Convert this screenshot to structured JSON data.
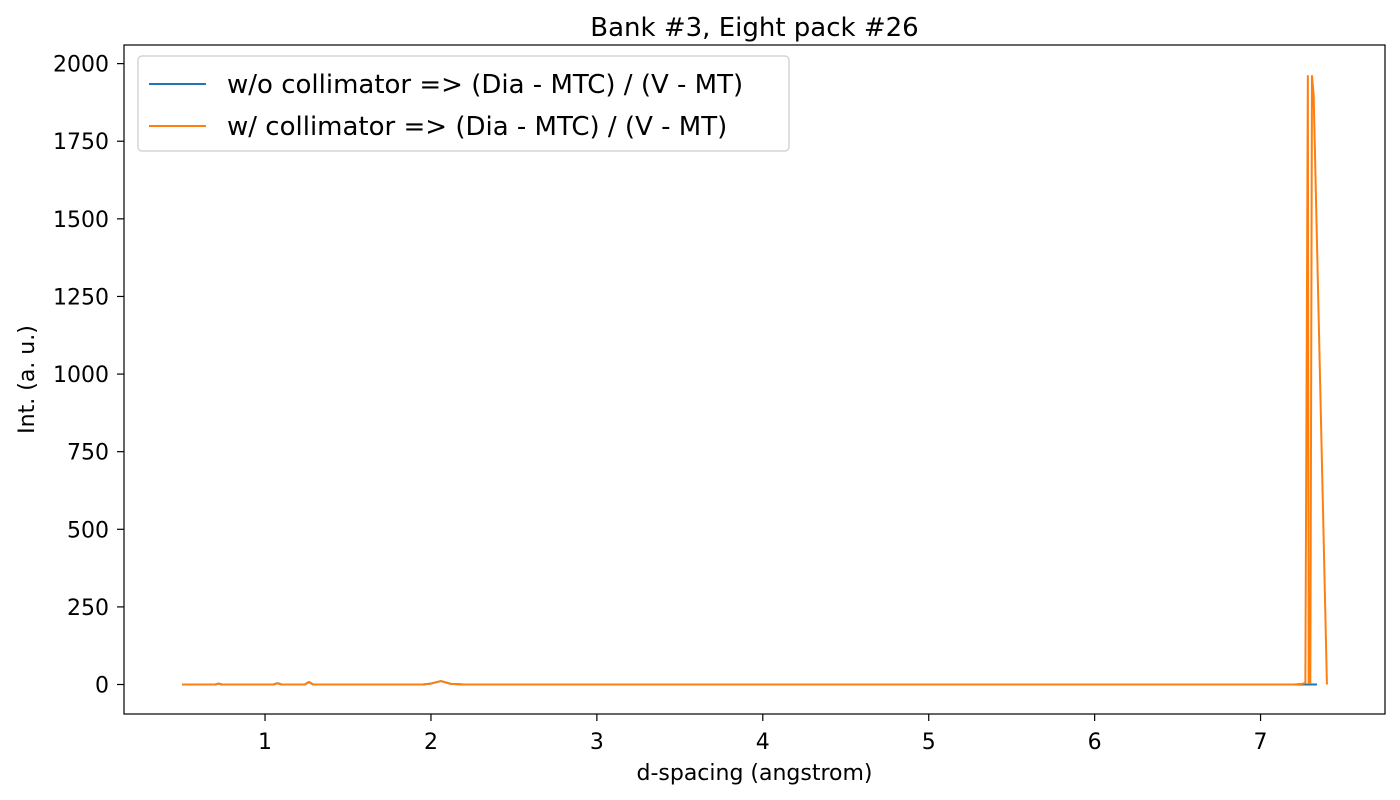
{
  "chart_data": {
    "type": "line",
    "title": "Bank #3, Eight pack #26",
    "xlabel": "d-spacing (angstrom)",
    "ylabel": "Int. (a. u.)",
    "xlim": [
      0.15,
      7.75
    ],
    "ylim": [
      -95,
      2060
    ],
    "xticks": [
      1,
      2,
      3,
      4,
      5,
      6,
      7
    ],
    "xtick_labels": [
      "1",
      "2",
      "3",
      "4",
      "5",
      "6",
      "7"
    ],
    "yticks": [
      0,
      250,
      500,
      750,
      1000,
      1250,
      1500,
      1750,
      2000
    ],
    "ytick_labels": [
      "0",
      "250",
      "500",
      "750",
      "1000",
      "1250",
      "1500",
      "1750",
      "2000"
    ],
    "grid": false,
    "legend_position": "top-left",
    "series": [
      {
        "name": "w/o collimator => (Dia - MTC) / (V - MT)",
        "color": "#1f77b4",
        "x": [
          0.5,
          0.6,
          0.7,
          0.72,
          0.74,
          0.8,
          0.9,
          1.0,
          1.05,
          1.075,
          1.1,
          1.2,
          1.24,
          1.265,
          1.29,
          1.4,
          1.6,
          1.8,
          1.95,
          2.0,
          2.06,
          2.12,
          2.2,
          2.5,
          3.0,
          4.0,
          5.0,
          6.0,
          7.0,
          7.2,
          7.34
        ],
        "y": [
          0,
          0,
          0,
          3,
          0,
          0,
          0,
          0,
          0,
          4,
          0,
          0,
          0,
          8,
          0,
          0,
          0,
          0,
          0,
          3,
          11,
          2,
          0,
          0,
          0,
          0,
          0,
          0,
          0,
          0,
          0
        ]
      },
      {
        "name": "w/ collimator => (Dia - MTC) / (V - MT)",
        "color": "#ff7f0e",
        "x": [
          0.5,
          0.6,
          0.7,
          0.72,
          0.74,
          0.8,
          0.9,
          1.0,
          1.05,
          1.075,
          1.1,
          1.2,
          1.24,
          1.265,
          1.29,
          1.4,
          1.6,
          1.8,
          1.95,
          2.0,
          2.06,
          2.12,
          2.2,
          2.5,
          3.0,
          4.0,
          5.0,
          6.0,
          7.0,
          7.2,
          7.25,
          7.27,
          7.285,
          7.29,
          7.3,
          7.31,
          7.32,
          7.4
        ],
        "y": [
          0,
          0,
          0,
          3,
          0,
          0,
          0,
          0,
          0,
          4,
          0,
          0,
          0,
          8,
          0,
          0,
          0,
          0,
          0,
          3,
          11,
          2,
          0,
          0,
          0,
          0,
          0,
          0,
          0,
          0,
          2,
          5,
          1960,
          5,
          5,
          1960,
          1900,
          0
        ]
      }
    ]
  }
}
